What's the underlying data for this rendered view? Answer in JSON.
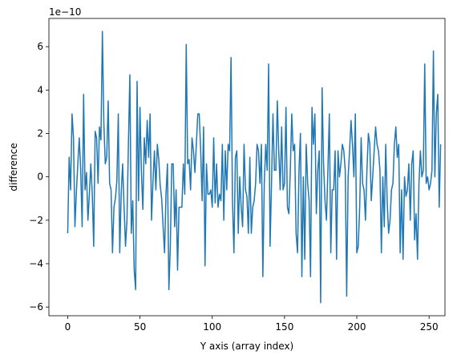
{
  "chart_data": {
    "type": "line",
    "title": "",
    "xlabel": "Y axis (array index)",
    "ylabel": "difference",
    "y_offset_label": "1e−10",
    "xlim": [
      -13,
      261
    ],
    "ylim": [
      -6.4,
      7.3
    ],
    "grid": false,
    "line_color": "#1f77b4",
    "x_ticks": [
      0,
      50,
      100,
      150,
      200,
      250
    ],
    "x_tick_labels": [
      "0",
      "50",
      "100",
      "150",
      "200",
      "250"
    ],
    "y_ticks": [
      -6,
      -4,
      -2,
      0,
      2,
      4,
      6
    ],
    "y_tick_labels": [
      "−6",
      "−4",
      "−2",
      "0",
      "2",
      "4",
      "6"
    ],
    "series": [
      {
        "x0": 0,
        "dx": 1,
        "values": [
          -2.6,
          0.9,
          -0.6,
          2.9,
          1.8,
          -2.3,
          -0.7,
          0.6,
          1.8,
          0.3,
          -2.3,
          3.8,
          -0.6,
          0.2,
          -2.0,
          -0.8,
          0.6,
          -0.8,
          -3.2,
          2.1,
          1.8,
          -0.3,
          2.3,
          1.7,
          6.7,
          2.5,
          0.6,
          0.9,
          3.5,
          -0.3,
          -0.6,
          -3.5,
          -1.4,
          -1.0,
          -0.2,
          2.9,
          -3.5,
          -0.8,
          0.6,
          -1.4,
          -3.2,
          -2.0,
          1.5,
          4.7,
          -2.6,
          -1.1,
          -4.3,
          -5.2,
          4.4,
          -1.1,
          3.2,
          0.2,
          -1.5,
          1.8,
          0.6,
          2.6,
          0.9,
          2.9,
          -2.0,
          -0.2,
          1.2,
          -0.6,
          1.5,
          0.8,
          -0.4,
          -1.0,
          -2.3,
          -3.5,
          -0.8,
          0.6,
          -5.2,
          -3.2,
          0.6,
          0.6,
          -2.3,
          -0.6,
          -4.3,
          -1.4,
          -1.4,
          -1.4,
          0.6,
          -0.8,
          6.1,
          0.6,
          0.8,
          -0.6,
          1.8,
          1.2,
          0.2,
          1.5,
          2.9,
          2.9,
          1.2,
          -1.1,
          2.3,
          -4.1,
          0.6,
          -0.8,
          -0.8,
          -0.6,
          -1.4,
          1.8,
          -1.2,
          0.6,
          -1.4,
          -0.8,
          -1.1,
          1.5,
          -2.0,
          1.2,
          -0.6,
          1.5,
          1.2,
          5.5,
          -1.1,
          -3.5,
          0.9,
          1.2,
          -2.6,
          0.0,
          -1.4,
          -2.3,
          1.5,
          -0.6,
          -0.9,
          -2.6,
          0.9,
          -2.6,
          -1.4,
          -1.1,
          -0.3,
          1.5,
          1.2,
          -0.3,
          1.5,
          -4.6,
          -0.3,
          1.5,
          0.3,
          5.2,
          -3.2,
          -0.3,
          2.9,
          0.3,
          0.3,
          3.5,
          1.2,
          -0.6,
          2.3,
          -0.6,
          -0.3,
          3.2,
          -1.4,
          -1.7,
          0.3,
          2.9,
          1.2,
          1.5,
          -2.6,
          -3.5,
          0.3,
          2.0,
          -4.6,
          0.0,
          -3.8,
          1.5,
          -0.3,
          -1.1,
          -4.6,
          3.2,
          1.5,
          2.9,
          -1.7,
          0.3,
          1.2,
          -5.8,
          4.1,
          0.6,
          -1.1,
          -2.0,
          0.3,
          2.9,
          -3.5,
          -0.6,
          -0.6,
          1.2,
          -3.8,
          1.2,
          0.0,
          0.6,
          1.5,
          1.2,
          0.3,
          -5.5,
          0.0,
          1.2,
          2.6,
          1.5,
          0.0,
          2.9,
          -3.5,
          -3.2,
          -1.4,
          1.8,
          -0.3,
          -0.6,
          -2.0,
          0.3,
          2.0,
          1.5,
          -1.1,
          0.0,
          1.2,
          2.3,
          1.5,
          1.2,
          0.3,
          -3.5,
          0.0,
          -2.3,
          1.5,
          -1.1,
          -2.6,
          -2.0,
          -0.6,
          -0.3,
          1.5,
          2.3,
          0.9,
          1.5,
          -3.5,
          -0.6,
          -3.8,
          0.0,
          -0.9,
          -0.6,
          0.6,
          -2.0,
          0.6,
          1.2,
          -2.9,
          -1.7,
          -3.8,
          -0.3,
          1.2,
          0.0,
          0.3,
          5.2,
          -0.3,
          0.0,
          -0.6,
          -0.3,
          0.3,
          5.8,
          0.0,
          2.9,
          3.8,
          -1.4,
          1.5
        ]
      }
    ]
  }
}
